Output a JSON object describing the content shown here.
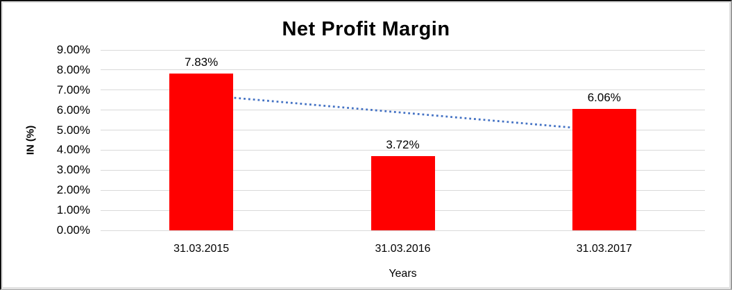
{
  "chart_data": {
    "type": "bar",
    "title": "Net Profit Margin",
    "categories": [
      "31.03.2015",
      "31.03.2016",
      "31.03.2017"
    ],
    "values": [
      7.83,
      3.72,
      6.06
    ],
    "value_labels": [
      "7.83%",
      "3.72%",
      "6.06%"
    ],
    "xlabel": "Years",
    "ylabel": "IN (%)",
    "ylim": [
      0,
      9
    ],
    "ytick_step": 1,
    "ytick_labels": [
      "0.00%",
      "1.00%",
      "2.00%",
      "3.00%",
      "4.00%",
      "5.00%",
      "6.00%",
      "7.00%",
      "8.00%",
      "9.00%"
    ],
    "grid": true,
    "legend": "none",
    "bar_color": "#ff0000",
    "gridline_color": "#d9d9d9",
    "text_color": "#000000",
    "trendline": {
      "type": "linear",
      "style": "dotted",
      "color": "#4472c4",
      "start_value": 6.755,
      "end_value": 4.985
    }
  }
}
